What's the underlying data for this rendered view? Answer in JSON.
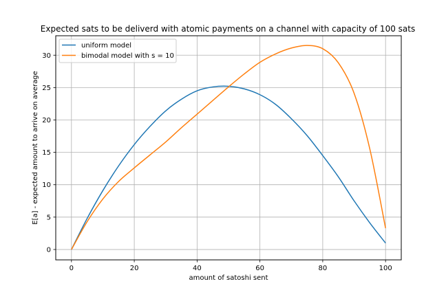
{
  "chart_data": {
    "type": "line",
    "title": "Expected sats to be deliverd with atomic payments on a channel with capacity of 100 sats",
    "xlabel": "amount of satoshi sent",
    "ylabel": "E[a] - expected amount to arrive on average",
    "xlim": [
      -5,
      105
    ],
    "ylim": [
      -1.6,
      33
    ],
    "xticks": [
      0,
      20,
      40,
      60,
      80,
      100
    ],
    "yticks": [
      0,
      5,
      10,
      15,
      20,
      25,
      30
    ],
    "grid": true,
    "legend_position": "top-left",
    "x": [
      0,
      5,
      10,
      15,
      20,
      25,
      30,
      35,
      40,
      45,
      50,
      55,
      60,
      65,
      70,
      75,
      80,
      85,
      90,
      95,
      100
    ],
    "series": [
      {
        "name": "uniform model",
        "color": "#1f77b4",
        "values": [
          0,
          4.8,
          9.1,
          12.9,
          16.2,
          19.0,
          21.4,
          23.2,
          24.5,
          25.1,
          25.2,
          24.8,
          23.9,
          22.4,
          20.2,
          17.6,
          14.5,
          11.2,
          7.5,
          4.1,
          1.0
        ]
      },
      {
        "name": "bimodal model with s = 10",
        "color": "#ff7f0e",
        "values": [
          0,
          4.3,
          7.8,
          10.5,
          12.6,
          14.6,
          16.6,
          18.8,
          20.9,
          23.0,
          25.1,
          27.1,
          28.9,
          30.2,
          31.1,
          31.5,
          31.0,
          28.8,
          24.1,
          15.5,
          3.3
        ]
      }
    ]
  }
}
